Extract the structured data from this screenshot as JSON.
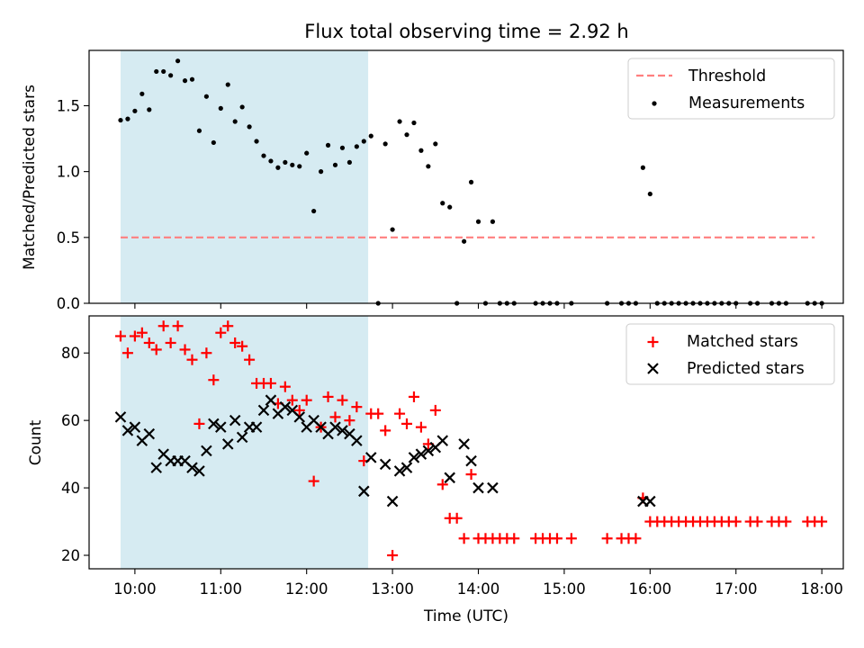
{
  "chart_data": [
    {
      "type": "scatter",
      "title": "Flux total observing time = 2.92 h",
      "xlabel": "",
      "ylabel": "Matched/Predicted stars",
      "ylim": [
        0,
        1.92
      ],
      "xlim": [
        "09:28",
        "18:15"
      ],
      "grid": false,
      "legend_position": "top-right",
      "highlight_span": {
        "start": "09:50",
        "end": "12:43",
        "color": "#add8e6"
      },
      "yticks": [
        0.0,
        0.5,
        1.0,
        1.5
      ],
      "yticklabels": [
        "0.0",
        "0.5",
        "1.0",
        "1.5"
      ],
      "threshold": {
        "name": "Threshold",
        "value": 0.5,
        "x_start": "09:50",
        "x_end": "17:55",
        "color": "#ff7f7f"
      },
      "series": [
        {
          "name": "Measurements",
          "color": "#000000",
          "marker": "dot",
          "points": [
            [
              "09:50",
              1.39
            ],
            [
              "09:55",
              1.4
            ],
            [
              "10:00",
              1.46
            ],
            [
              "10:05",
              1.59
            ],
            [
              "10:10",
              1.47
            ],
            [
              "10:15",
              1.76
            ],
            [
              "10:20",
              1.76
            ],
            [
              "10:25",
              1.73
            ],
            [
              "10:30",
              1.84
            ],
            [
              "10:35",
              1.69
            ],
            [
              "10:40",
              1.7
            ],
            [
              "10:45",
              1.31
            ],
            [
              "10:50",
              1.57
            ],
            [
              "10:55",
              1.22
            ],
            [
              "11:00",
              1.48
            ],
            [
              "11:05",
              1.66
            ],
            [
              "11:10",
              1.38
            ],
            [
              "11:15",
              1.49
            ],
            [
              "11:20",
              1.34
            ],
            [
              "11:25",
              1.23
            ],
            [
              "11:30",
              1.12
            ],
            [
              "11:35",
              1.08
            ],
            [
              "11:40",
              1.03
            ],
            [
              "11:45",
              1.07
            ],
            [
              "11:50",
              1.05
            ],
            [
              "11:55",
              1.04
            ],
            [
              "12:00",
              1.14
            ],
            [
              "12:05",
              0.7
            ],
            [
              "12:10",
              1.0
            ],
            [
              "12:15",
              1.2
            ],
            [
              "12:20",
              1.05
            ],
            [
              "12:25",
              1.18
            ],
            [
              "12:30",
              1.07
            ],
            [
              "12:35",
              1.19
            ],
            [
              "12:40",
              1.23
            ],
            [
              "12:45",
              1.27
            ],
            [
              "12:50",
              0.0
            ],
            [
              "12:55",
              1.21
            ],
            [
              "13:00",
              0.56
            ],
            [
              "13:05",
              1.38
            ],
            [
              "13:10",
              1.28
            ],
            [
              "13:15",
              1.37
            ],
            [
              "13:20",
              1.16
            ],
            [
              "13:25",
              1.04
            ],
            [
              "13:30",
              1.21
            ],
            [
              "13:35",
              0.76
            ],
            [
              "13:40",
              0.73
            ],
            [
              "13:45",
              0.0
            ],
            [
              "13:50",
              0.47
            ],
            [
              "13:55",
              0.92
            ],
            [
              "14:00",
              0.62
            ],
            [
              "14:05",
              0.0
            ],
            [
              "14:10",
              0.62
            ],
            [
              "14:15",
              0.0
            ],
            [
              "14:20",
              0.0
            ],
            [
              "14:25",
              0.0
            ],
            [
              "14:40",
              0.0
            ],
            [
              "14:45",
              0.0
            ],
            [
              "14:50",
              0.0
            ],
            [
              "14:55",
              0.0
            ],
            [
              "15:05",
              0.0
            ],
            [
              "15:30",
              0.0
            ],
            [
              "15:40",
              0.0
            ],
            [
              "15:45",
              0.0
            ],
            [
              "15:50",
              0.0
            ],
            [
              "15:55",
              1.03
            ],
            [
              "16:00",
              0.83
            ],
            [
              "16:05",
              0.0
            ],
            [
              "16:10",
              0.0
            ],
            [
              "16:15",
              0.0
            ],
            [
              "16:20",
              0.0
            ],
            [
              "16:25",
              0.0
            ],
            [
              "16:30",
              0.0
            ],
            [
              "16:35",
              0.0
            ],
            [
              "16:40",
              0.0
            ],
            [
              "16:45",
              0.0
            ],
            [
              "16:50",
              0.0
            ],
            [
              "16:55",
              0.0
            ],
            [
              "17:00",
              0.0
            ],
            [
              "17:10",
              0.0
            ],
            [
              "17:15",
              0.0
            ],
            [
              "17:25",
              0.0
            ],
            [
              "17:30",
              0.0
            ],
            [
              "17:35",
              0.0
            ],
            [
              "17:50",
              0.0
            ],
            [
              "17:55",
              0.0
            ],
            [
              "18:00",
              0.0
            ]
          ]
        }
      ]
    },
    {
      "type": "scatter",
      "title": "",
      "xlabel": "Time (UTC)",
      "ylabel": "Count",
      "ylim": [
        16,
        91
      ],
      "xlim": [
        "09:28",
        "18:15"
      ],
      "grid": false,
      "legend_position": "top-right",
      "highlight_span": {
        "start": "09:50",
        "end": "12:43",
        "color": "#add8e6"
      },
      "yticks": [
        20,
        40,
        60,
        80
      ],
      "yticklabels": [
        "20",
        "40",
        "60",
        "80"
      ],
      "xticks": [
        "10:00",
        "11:00",
        "12:00",
        "13:00",
        "14:00",
        "15:00",
        "16:00",
        "17:00",
        "18:00"
      ],
      "xticklabels": [
        "10:00",
        "11:00",
        "12:00",
        "13:00",
        "14:00",
        "15:00",
        "16:00",
        "17:00",
        "18:00"
      ],
      "series": [
        {
          "name": "Matched stars",
          "color": "#ff0000",
          "marker": "plus",
          "points": [
            [
              "09:50",
              85
            ],
            [
              "09:55",
              80
            ],
            [
              "10:00",
              85
            ],
            [
              "10:05",
              86
            ],
            [
              "10:10",
              83
            ],
            [
              "10:15",
              81
            ],
            [
              "10:20",
              88
            ],
            [
              "10:25",
              83
            ],
            [
              "10:30",
              88
            ],
            [
              "10:35",
              81
            ],
            [
              "10:40",
              78
            ],
            [
              "10:45",
              59
            ],
            [
              "10:50",
              80
            ],
            [
              "10:55",
              72
            ],
            [
              "11:00",
              86
            ],
            [
              "11:05",
              88
            ],
            [
              "11:10",
              83
            ],
            [
              "11:15",
              82
            ],
            [
              "11:20",
              78
            ],
            [
              "11:25",
              71
            ],
            [
              "11:30",
              71
            ],
            [
              "11:35",
              71
            ],
            [
              "11:40",
              65
            ],
            [
              "11:45",
              70
            ],
            [
              "11:50",
              66
            ],
            [
              "11:55",
              63
            ],
            [
              "12:00",
              66
            ],
            [
              "12:05",
              42
            ],
            [
              "12:10",
              58
            ],
            [
              "12:15",
              67
            ],
            [
              "12:20",
              61
            ],
            [
              "12:25",
              66
            ],
            [
              "12:30",
              60
            ],
            [
              "12:35",
              64
            ],
            [
              "12:40",
              48
            ],
            [
              "12:45",
              62
            ],
            [
              "12:50",
              62
            ],
            [
              "12:55",
              57
            ],
            [
              "13:00",
              20
            ],
            [
              "13:05",
              62
            ],
            [
              "13:10",
              59
            ],
            [
              "13:15",
              67
            ],
            [
              "13:20",
              58
            ],
            [
              "13:25",
              53
            ],
            [
              "13:30",
              63
            ],
            [
              "13:35",
              41
            ],
            [
              "13:40",
              31
            ],
            [
              "13:45",
              31
            ],
            [
              "13:50",
              25
            ],
            [
              "13:55",
              44
            ],
            [
              "14:00",
              25
            ],
            [
              "14:05",
              25
            ],
            [
              "14:10",
              25
            ],
            [
              "14:15",
              25
            ],
            [
              "14:20",
              25
            ],
            [
              "14:25",
              25
            ],
            [
              "14:40",
              25
            ],
            [
              "14:45",
              25
            ],
            [
              "14:50",
              25
            ],
            [
              "14:55",
              25
            ],
            [
              "15:05",
              25
            ],
            [
              "15:30",
              25
            ],
            [
              "15:40",
              25
            ],
            [
              "15:45",
              25
            ],
            [
              "15:50",
              25
            ],
            [
              "15:55",
              37
            ],
            [
              "16:00",
              30
            ],
            [
              "16:05",
              30
            ],
            [
              "16:10",
              30
            ],
            [
              "16:15",
              30
            ],
            [
              "16:20",
              30
            ],
            [
              "16:25",
              30
            ],
            [
              "16:30",
              30
            ],
            [
              "16:35",
              30
            ],
            [
              "16:40",
              30
            ],
            [
              "16:45",
              30
            ],
            [
              "16:50",
              30
            ],
            [
              "16:55",
              30
            ],
            [
              "17:00",
              30
            ],
            [
              "17:10",
              30
            ],
            [
              "17:15",
              30
            ],
            [
              "17:25",
              30
            ],
            [
              "17:30",
              30
            ],
            [
              "17:35",
              30
            ],
            [
              "17:50",
              30
            ],
            [
              "17:55",
              30
            ],
            [
              "18:00",
              30
            ]
          ]
        },
        {
          "name": "Predicted stars",
          "color": "#000000",
          "marker": "x",
          "points": [
            [
              "09:50",
              61
            ],
            [
              "09:55",
              57
            ],
            [
              "10:00",
              58
            ],
            [
              "10:05",
              54
            ],
            [
              "10:10",
              56
            ],
            [
              "10:15",
              46
            ],
            [
              "10:20",
              50
            ],
            [
              "10:25",
              48
            ],
            [
              "10:30",
              48
            ],
            [
              "10:35",
              48
            ],
            [
              "10:40",
              46
            ],
            [
              "10:45",
              45
            ],
            [
              "10:50",
              51
            ],
            [
              "10:55",
              59
            ],
            [
              "11:00",
              58
            ],
            [
              "11:05",
              53
            ],
            [
              "11:10",
              60
            ],
            [
              "11:15",
              55
            ],
            [
              "11:20",
              58
            ],
            [
              "11:25",
              58
            ],
            [
              "11:30",
              63
            ],
            [
              "11:35",
              66
            ],
            [
              "11:40",
              62
            ],
            [
              "11:45",
              64
            ],
            [
              "11:50",
              63
            ],
            [
              "11:55",
              61
            ],
            [
              "12:00",
              58
            ],
            [
              "12:05",
              60
            ],
            [
              "12:10",
              58
            ],
            [
              "12:15",
              56
            ],
            [
              "12:20",
              58
            ],
            [
              "12:25",
              57
            ],
            [
              "12:30",
              56
            ],
            [
              "12:35",
              54
            ],
            [
              "12:40",
              39
            ],
            [
              "12:45",
              49
            ],
            [
              "12:55",
              47
            ],
            [
              "13:00",
              36
            ],
            [
              "13:05",
              45
            ],
            [
              "13:10",
              46
            ],
            [
              "13:15",
              49
            ],
            [
              "13:20",
              50
            ],
            [
              "13:25",
              51
            ],
            [
              "13:30",
              52
            ],
            [
              "13:35",
              54
            ],
            [
              "13:40",
              43
            ],
            [
              "13:50",
              53
            ],
            [
              "13:55",
              48
            ],
            [
              "14:00",
              40
            ],
            [
              "14:10",
              40
            ],
            [
              "15:55",
              36
            ],
            [
              "16:00",
              36
            ]
          ]
        }
      ]
    }
  ]
}
